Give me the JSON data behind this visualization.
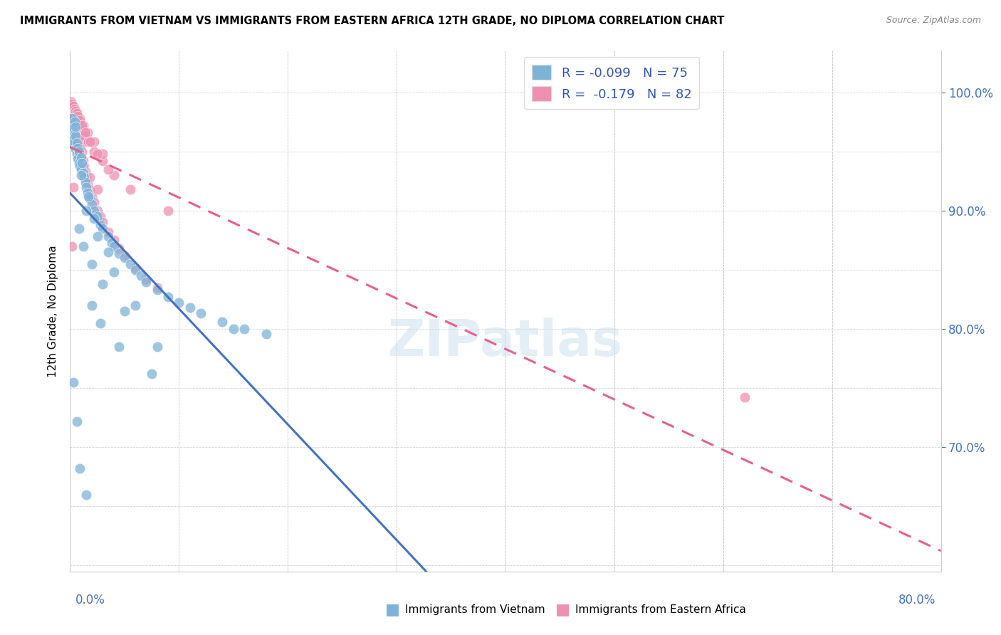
{
  "title": "IMMIGRANTS FROM VIETNAM VS IMMIGRANTS FROM EASTERN AFRICA 12TH GRADE, NO DIPLOMA CORRELATION CHART",
  "source": "Source: ZipAtlas.com",
  "ylabel": "12th Grade, No Diploma",
  "ylabel_right_ticks": [
    "100.0%",
    "90.0%",
    "80.0%",
    "70.0%"
  ],
  "ylabel_right_vals": [
    1.0,
    0.9,
    0.8,
    0.7
  ],
  "legend_line1": "R = -0.099   N = 75",
  "legend_line2": "R =  -0.179   N = 82",
  "watermark": "ZIPatlas",
  "xlim": [
    0.0,
    0.8
  ],
  "ylim": [
    0.595,
    1.035
  ],
  "blue_color": "#7eb3d8",
  "pink_color": "#f090b0",
  "blue_line_color": "#4472c4",
  "pink_line_color": "#e8608a",
  "vietnam_x": [
    0.001,
    0.001,
    0.002,
    0.002,
    0.002,
    0.003,
    0.003,
    0.003,
    0.004,
    0.004,
    0.004,
    0.005,
    0.005,
    0.005,
    0.006,
    0.006,
    0.007,
    0.007,
    0.008,
    0.008,
    0.009,
    0.01,
    0.01,
    0.011,
    0.012,
    0.013,
    0.014,
    0.015,
    0.016,
    0.018,
    0.02,
    0.022,
    0.025,
    0.028,
    0.03,
    0.035,
    0.038,
    0.04,
    0.045,
    0.05,
    0.055,
    0.06,
    0.065,
    0.07,
    0.08,
    0.09,
    0.1,
    0.11,
    0.12,
    0.14,
    0.16,
    0.18,
    0.008,
    0.012,
    0.02,
    0.03,
    0.05,
    0.015,
    0.025,
    0.04,
    0.01,
    0.017,
    0.022,
    0.035,
    0.06,
    0.08,
    0.003,
    0.006,
    0.009,
    0.015,
    0.02,
    0.028,
    0.045,
    0.075,
    0.15
  ],
  "vietnam_y": [
    0.968,
    0.975,
    0.972,
    0.965,
    0.978,
    0.96,
    0.97,
    0.955,
    0.965,
    0.958,
    0.975,
    0.952,
    0.963,
    0.971,
    0.948,
    0.957,
    0.944,
    0.953,
    0.94,
    0.95,
    0.938,
    0.945,
    0.935,
    0.94,
    0.932,
    0.928,
    0.924,
    0.92,
    0.915,
    0.91,
    0.905,
    0.9,
    0.895,
    0.888,
    0.885,
    0.878,
    0.873,
    0.87,
    0.864,
    0.86,
    0.855,
    0.85,
    0.845,
    0.84,
    0.833,
    0.827,
    0.822,
    0.818,
    0.813,
    0.806,
    0.8,
    0.796,
    0.885,
    0.87,
    0.855,
    0.838,
    0.815,
    0.9,
    0.878,
    0.848,
    0.93,
    0.912,
    0.893,
    0.865,
    0.82,
    0.785,
    0.755,
    0.722,
    0.682,
    0.66,
    0.82,
    0.805,
    0.785,
    0.762,
    0.8
  ],
  "eastern_africa_x": [
    0.001,
    0.001,
    0.002,
    0.002,
    0.003,
    0.003,
    0.003,
    0.004,
    0.004,
    0.005,
    0.005,
    0.005,
    0.006,
    0.006,
    0.007,
    0.007,
    0.008,
    0.008,
    0.009,
    0.01,
    0.01,
    0.011,
    0.012,
    0.013,
    0.014,
    0.015,
    0.016,
    0.018,
    0.02,
    0.022,
    0.025,
    0.028,
    0.03,
    0.035,
    0.04,
    0.045,
    0.05,
    0.06,
    0.07,
    0.08,
    0.002,
    0.004,
    0.006,
    0.008,
    0.01,
    0.013,
    0.017,
    0.022,
    0.03,
    0.04,
    0.002,
    0.004,
    0.006,
    0.009,
    0.012,
    0.016,
    0.022,
    0.03,
    0.003,
    0.005,
    0.008,
    0.012,
    0.018,
    0.025,
    0.001,
    0.002,
    0.003,
    0.004,
    0.005,
    0.006,
    0.007,
    0.009,
    0.011,
    0.014,
    0.019,
    0.025,
    0.035,
    0.055,
    0.09,
    0.002,
    0.62,
    0.003
  ],
  "eastern_africa_y": [
    0.975,
    0.982,
    0.978,
    0.97,
    0.972,
    0.968,
    0.98,
    0.965,
    0.975,
    0.96,
    0.968,
    0.975,
    0.958,
    0.965,
    0.955,
    0.962,
    0.952,
    0.96,
    0.948,
    0.955,
    0.945,
    0.95,
    0.942,
    0.938,
    0.933,
    0.928,
    0.923,
    0.918,
    0.912,
    0.907,
    0.9,
    0.895,
    0.89,
    0.882,
    0.875,
    0.868,
    0.862,
    0.852,
    0.842,
    0.835,
    0.985,
    0.98,
    0.978,
    0.972,
    0.968,
    0.963,
    0.958,
    0.95,
    0.942,
    0.93,
    0.988,
    0.985,
    0.982,
    0.978,
    0.972,
    0.966,
    0.958,
    0.948,
    0.958,
    0.952,
    0.945,
    0.938,
    0.928,
    0.918,
    0.992,
    0.99,
    0.988,
    0.986,
    0.984,
    0.982,
    0.98,
    0.976,
    0.972,
    0.966,
    0.958,
    0.948,
    0.935,
    0.918,
    0.9,
    0.87,
    0.742,
    0.92
  ]
}
